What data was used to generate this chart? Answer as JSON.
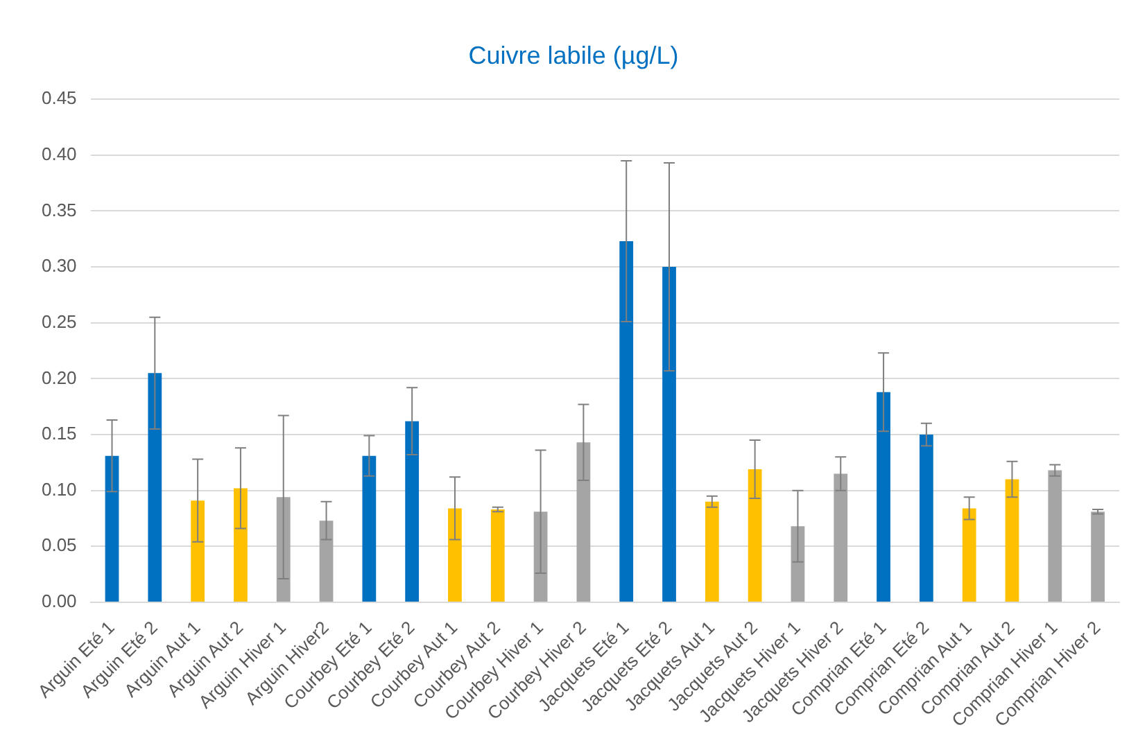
{
  "chart_data": {
    "type": "bar",
    "title": "Cuivre labile (µg/L)",
    "categories": [
      "Arguin Eté 1",
      "Arguin Eté 2",
      "Arguin Aut 1",
      "Arguin Aut 2",
      "Arguin Hiver 1",
      "Arguin Hiver2",
      "Courbey Eté 1",
      "Courbey Eté 2",
      "Courbey Aut 1",
      "Courbey Aut 2",
      "Courbey Hiver 1",
      "Courbey Hiver 2",
      "Jacquets Eté 1",
      "Jacquets Eté 2",
      "Jacquets Aut 1",
      "Jacquets Aut 2",
      "Jacquets Hiver 1",
      "Jacquets Hiver 2",
      "Comprian Eté 1",
      "Comprian Eté 2",
      "Comprian Aut 1",
      "Comprian Aut 2",
      "Comprian Hiver 1",
      "Comprian Hiver 2"
    ],
    "values": [
      0.131,
      0.205,
      0.091,
      0.102,
      0.094,
      0.073,
      0.131,
      0.162,
      0.084,
      0.083,
      0.081,
      0.143,
      0.323,
      0.3,
      0.09,
      0.119,
      0.068,
      0.115,
      0.188,
      0.15,
      0.084,
      0.11,
      0.118,
      0.081
    ],
    "errors": [
      0.032,
      0.05,
      0.037,
      0.036,
      0.073,
      0.017,
      0.018,
      0.03,
      0.028,
      0.002,
      0.055,
      0.034,
      0.072,
      0.093,
      0.005,
      0.026,
      0.032,
      0.015,
      0.035,
      0.01,
      0.01,
      0.016,
      0.005,
      0.002
    ],
    "colors": [
      "#0070c0",
      "#0070c0",
      "#ffc000",
      "#ffc000",
      "#a5a5a5",
      "#a5a5a5",
      "#0070c0",
      "#0070c0",
      "#ffc000",
      "#ffc000",
      "#a5a5a5",
      "#a5a5a5",
      "#0070c0",
      "#0070c0",
      "#ffc000",
      "#ffc000",
      "#a5a5a5",
      "#a5a5a5",
      "#0070c0",
      "#0070c0",
      "#ffc000",
      "#ffc000",
      "#a5a5a5",
      "#a5a5a5"
    ],
    "ylim": [
      0,
      0.45
    ],
    "yticks": [
      {
        "value": 0,
        "label": "0.00"
      },
      {
        "value": 0.05,
        "label": "0.05"
      },
      {
        "value": 0.1,
        "label": "0.10"
      },
      {
        "value": 0.15,
        "label": "0.15"
      },
      {
        "value": 0.2,
        "label": "0.20"
      },
      {
        "value": 0.25,
        "label": "0.25"
      },
      {
        "value": 0.3,
        "label": "0.30"
      },
      {
        "value": 0.35,
        "label": "0.35"
      },
      {
        "value": 0.4,
        "label": "0.40"
      },
      {
        "value": 0.45,
        "label": "0.45"
      }
    ],
    "grid": "y",
    "legend": false
  }
}
